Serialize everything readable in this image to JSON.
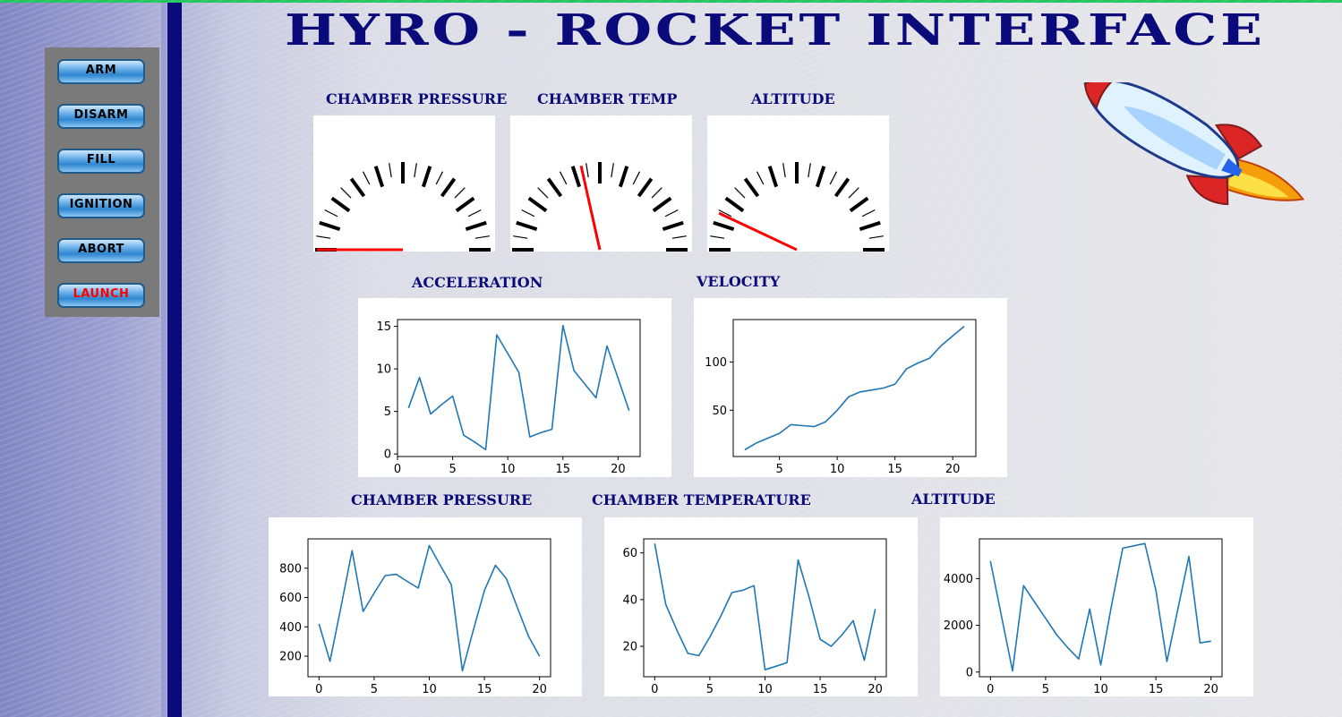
{
  "app": {
    "title": "Hyro - Rocket Interface"
  },
  "controls": [
    {
      "id": "arm",
      "label": "ARM"
    },
    {
      "id": "disarm",
      "label": "DISARM"
    },
    {
      "id": "fill",
      "label": "FILL"
    },
    {
      "id": "ignition",
      "label": "IGNITION"
    },
    {
      "id": "abort",
      "label": "ABORT"
    },
    {
      "id": "launch",
      "label": "LAUNCH"
    }
  ],
  "gauges": [
    {
      "id": "chamber-pressure",
      "label": "CHAMBER PRESSURE",
      "fraction": 0.0
    },
    {
      "id": "chamber-temp",
      "label": "CHAMBER TEMP",
      "fraction": 0.43
    },
    {
      "id": "altitude",
      "label": "ALTITUDE",
      "fraction": 0.14
    }
  ],
  "colors": {
    "navy": "#0a0a7a",
    "series": "#1f77b4",
    "needle": "#ff0000",
    "launch": "#ff0000"
  },
  "chart_data": [
    {
      "id": "acceleration",
      "type": "line",
      "title": "ACCELERATION",
      "x": [
        1,
        2,
        3,
        4,
        5,
        6,
        7,
        8,
        9,
        10,
        11,
        12,
        13,
        14,
        15,
        16,
        17,
        18,
        19,
        20,
        21
      ],
      "y": [
        5.4,
        9.0,
        4.7,
        5.8,
        6.8,
        2.2,
        1.4,
        0.5,
        14.0,
        11.8,
        9.6,
        2.0,
        2.5,
        2.9,
        15.1,
        9.8,
        8.2,
        6.6,
        12.7,
        8.9,
        5.1
      ],
      "xlim": [
        0,
        22
      ],
      "ylim": [
        -0.3,
        15.8
      ],
      "xticks": [
        0,
        5,
        10,
        15,
        20
      ],
      "yticks": [
        0,
        5,
        10,
        15
      ]
    },
    {
      "id": "velocity",
      "type": "line",
      "title": "VELOCITY",
      "x": [
        2,
        3,
        4,
        5,
        6,
        7,
        8,
        9,
        10,
        11,
        12,
        13,
        14,
        15,
        16,
        17,
        18,
        19,
        20,
        21
      ],
      "y": [
        9,
        16,
        21,
        26,
        35,
        34,
        33,
        38,
        50,
        64,
        69,
        71,
        73,
        77,
        93,
        99,
        104,
        117,
        127,
        137
      ],
      "xlim": [
        1,
        22
      ],
      "ylim": [
        2,
        144
      ],
      "xticks": [
        5,
        10,
        15,
        20
      ],
      "yticks": [
        50,
        100
      ]
    },
    {
      "id": "chamber-pressure-plot",
      "type": "line",
      "title": "CHAMBER PRESSURE",
      "x": [
        0,
        1,
        2,
        3,
        4,
        5,
        6,
        7,
        8,
        9,
        10,
        11,
        12,
        13,
        14,
        15,
        16,
        17,
        18,
        19,
        20
      ],
      "y": [
        420,
        165,
        540,
        920,
        505,
        630,
        750,
        758,
        710,
        665,
        955,
        820,
        688,
        100,
        380,
        648,
        820,
        728,
        530,
        335,
        200
      ],
      "xlim": [
        -1,
        21
      ],
      "ylim": [
        60,
        1000
      ],
      "xticks": [
        0,
        5,
        10,
        15,
        20
      ],
      "yticks": [
        200,
        400,
        600,
        800
      ]
    },
    {
      "id": "chamber-temperature-plot",
      "type": "line",
      "title": "CHAMBER TEMPERATURE",
      "x": [
        0,
        1,
        2,
        3,
        4,
        5,
        6,
        7,
        8,
        9,
        10,
        11,
        12,
        13,
        14,
        15,
        16,
        17,
        18,
        19,
        20
      ],
      "y": [
        64,
        38,
        27,
        17,
        16,
        24,
        33,
        43,
        44,
        46,
        10,
        11.5,
        13,
        57,
        41,
        23,
        20,
        25,
        31,
        14,
        36
      ],
      "xlim": [
        -1,
        21
      ],
      "ylim": [
        7,
        66
      ],
      "xticks": [
        0,
        5,
        10,
        15,
        20
      ],
      "yticks": [
        20,
        40,
        60
      ]
    },
    {
      "id": "altitude-plot",
      "type": "line",
      "title": "ALTITUDE",
      "x": [
        0,
        1,
        2,
        3,
        4,
        5,
        6,
        7,
        8,
        9,
        10,
        11,
        12,
        13,
        14,
        15,
        16,
        17,
        18,
        19,
        20
      ],
      "y": [
        4750,
        2400,
        50,
        3700,
        3000,
        2300,
        1600,
        1050,
        560,
        2700,
        300,
        2900,
        5300,
        5400,
        5500,
        3500,
        450,
        2700,
        4950,
        1250,
        1320
      ],
      "xlim": [
        -1,
        21
      ],
      "ylim": [
        -200,
        5700
      ],
      "xticks": [
        0,
        5,
        10,
        15,
        20
      ],
      "yticks": [
        0,
        2000,
        4000
      ]
    }
  ]
}
